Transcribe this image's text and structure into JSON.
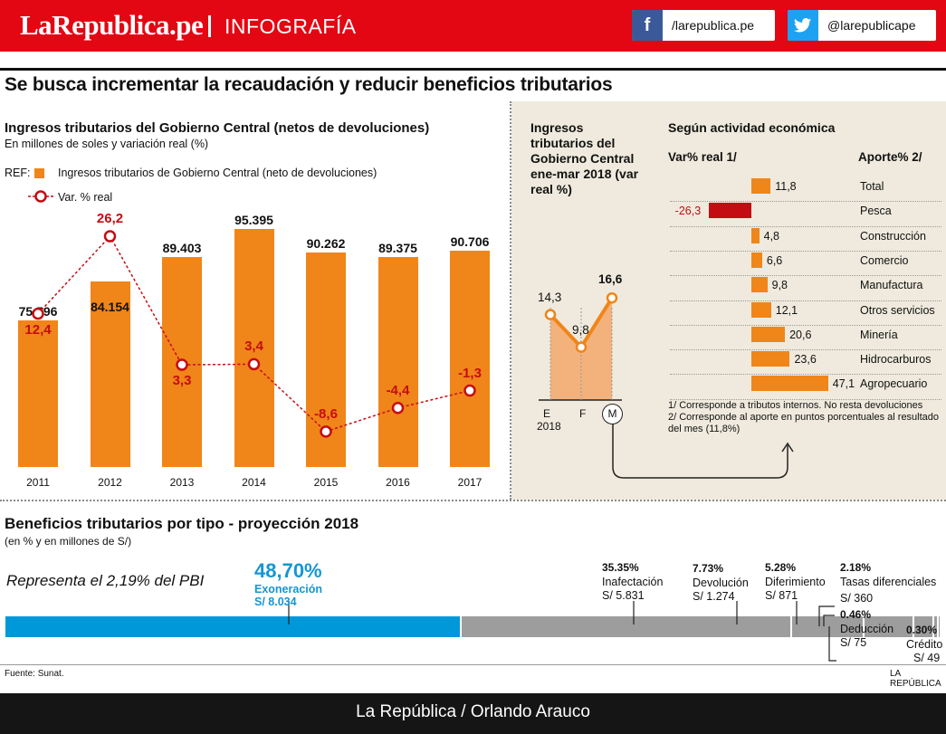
{
  "header": {
    "logo": "LaRepublica.pe",
    "section": "INFOGRAFÍA",
    "facebook": {
      "icon": "facebook-icon",
      "handle": "/larepublica.pe",
      "color": "#3b5998"
    },
    "twitter": {
      "icon": "twitter-icon",
      "handle": "@larepublicape",
      "color": "#1da1f2"
    }
  },
  "colors": {
    "brand": "#e30613",
    "bar": "#f08519",
    "line": "#c40d12",
    "blue": "#1596d4",
    "gray": "#9d9d9d"
  },
  "main_title": "Se busca incrementar la recaudación y reducir beneficios tributarios",
  "left_chart_text": {
    "title": "Ingresos tributarios del Gobierno Central (netos de devoluciones)",
    "subtitle": "En millones de soles  y variación real (%)",
    "ref": "REF:",
    "legend_bar": "Ingresos tributarios de Gobierno Central (neto de devoluciones)",
    "legend_line": "Var. % real"
  },
  "right_panel_text": {
    "title": "Ingresos tributarios del Gobierno Central ene-mar 2018 (var real %)",
    "year": "2018",
    "activity_title": "Según actividad económica",
    "var_header": "Var% real 1/",
    "aporte_header": "Aporte% 2/",
    "note1": "1/ Corresponde a tributos internos. No resta devoluciones",
    "note2": "2/ Corresponde al aporte en puntos porcentuales al resultado del mes (11,8%)"
  },
  "bottom": {
    "title": "Beneficios tributarios por tipo - proyección 2018",
    "subtitle": "(en % y en millones de S/)",
    "pbi_note": "Representa el 2,19% del PBI",
    "source": "Fuente: Sunat.",
    "brand_small": "LA REPÚBLICA",
    "credit": "La República / Orlando Arauco"
  },
  "chart_data": [
    {
      "type": "bar",
      "title": "Ingresos tributarios del Gobierno Central (netos de devoluciones)",
      "categories": [
        "2011",
        "2012",
        "2013",
        "2014",
        "2015",
        "2016",
        "2017"
      ],
      "series": [
        {
          "name": "Ingresos tributarios de Gobierno Central (neto de devoluciones)",
          "type": "bar",
          "values": [
            75596,
            84154,
            89403,
            95395,
            90262,
            89375,
            90706
          ],
          "labels": [
            "75.596",
            "84.154",
            "89.403",
            "95.395",
            "90.262",
            "89.375",
            "90.706"
          ]
        },
        {
          "name": "Var. % real",
          "type": "line",
          "values": [
            12.4,
            26.2,
            3.3,
            3.4,
            -8.6,
            -4.4,
            -1.3
          ],
          "labels": [
            "12,4",
            "26,2",
            "3,3",
            "3,4",
            "-8,6",
            "-4,4",
            "-1,3"
          ]
        }
      ],
      "ylim": [
        0,
        100000
      ]
    },
    {
      "type": "area",
      "title": "Ingresos tributarios del Gobierno Central ene-mar 2018 (var real %)",
      "categories": [
        "E",
        "F",
        "M"
      ],
      "values": [
        14.3,
        9.8,
        16.6
      ],
      "labels": [
        "14,3",
        "9,8",
        "16,6"
      ]
    },
    {
      "type": "bar",
      "title": "Según actividad económica",
      "categories": [
        "Total",
        "Pesca",
        "Construcción",
        "Comercio",
        "Manufactura",
        "Otros servicios",
        "Minería",
        "Hidrocarburos",
        "Agropecuario"
      ],
      "values": [
        11.8,
        -26.3,
        4.8,
        6.6,
        9.8,
        12.1,
        20.6,
        23.6,
        47.1
      ],
      "labels": [
        "11,8",
        "-26,3",
        "4,8",
        "6,6",
        "9,8",
        "12,1",
        "20,6",
        "23,6",
        "47,1"
      ]
    },
    {
      "type": "bar",
      "title": "Beneficios tributarios por tipo - proyección 2018",
      "categories": [
        "Exoneración",
        "Inafectación",
        "Devolución",
        "Diferimiento",
        "Tasas diferenciales",
        "Deducción",
        "Crédito"
      ],
      "percents": [
        48.7,
        35.35,
        7.73,
        5.28,
        2.18,
        0.46,
        0.3
      ],
      "pct_labels": [
        "48,70%",
        "35.35%",
        "7.73%",
        "5.28%",
        "2.18%",
        "0.46%",
        "0.30%"
      ],
      "amounts": [
        "S/ 8.034",
        "S/ 5.831",
        "S/ 1.274",
        "S/ 871",
        "S/ 360",
        "S/ 75",
        "S/ 49"
      ]
    }
  ]
}
